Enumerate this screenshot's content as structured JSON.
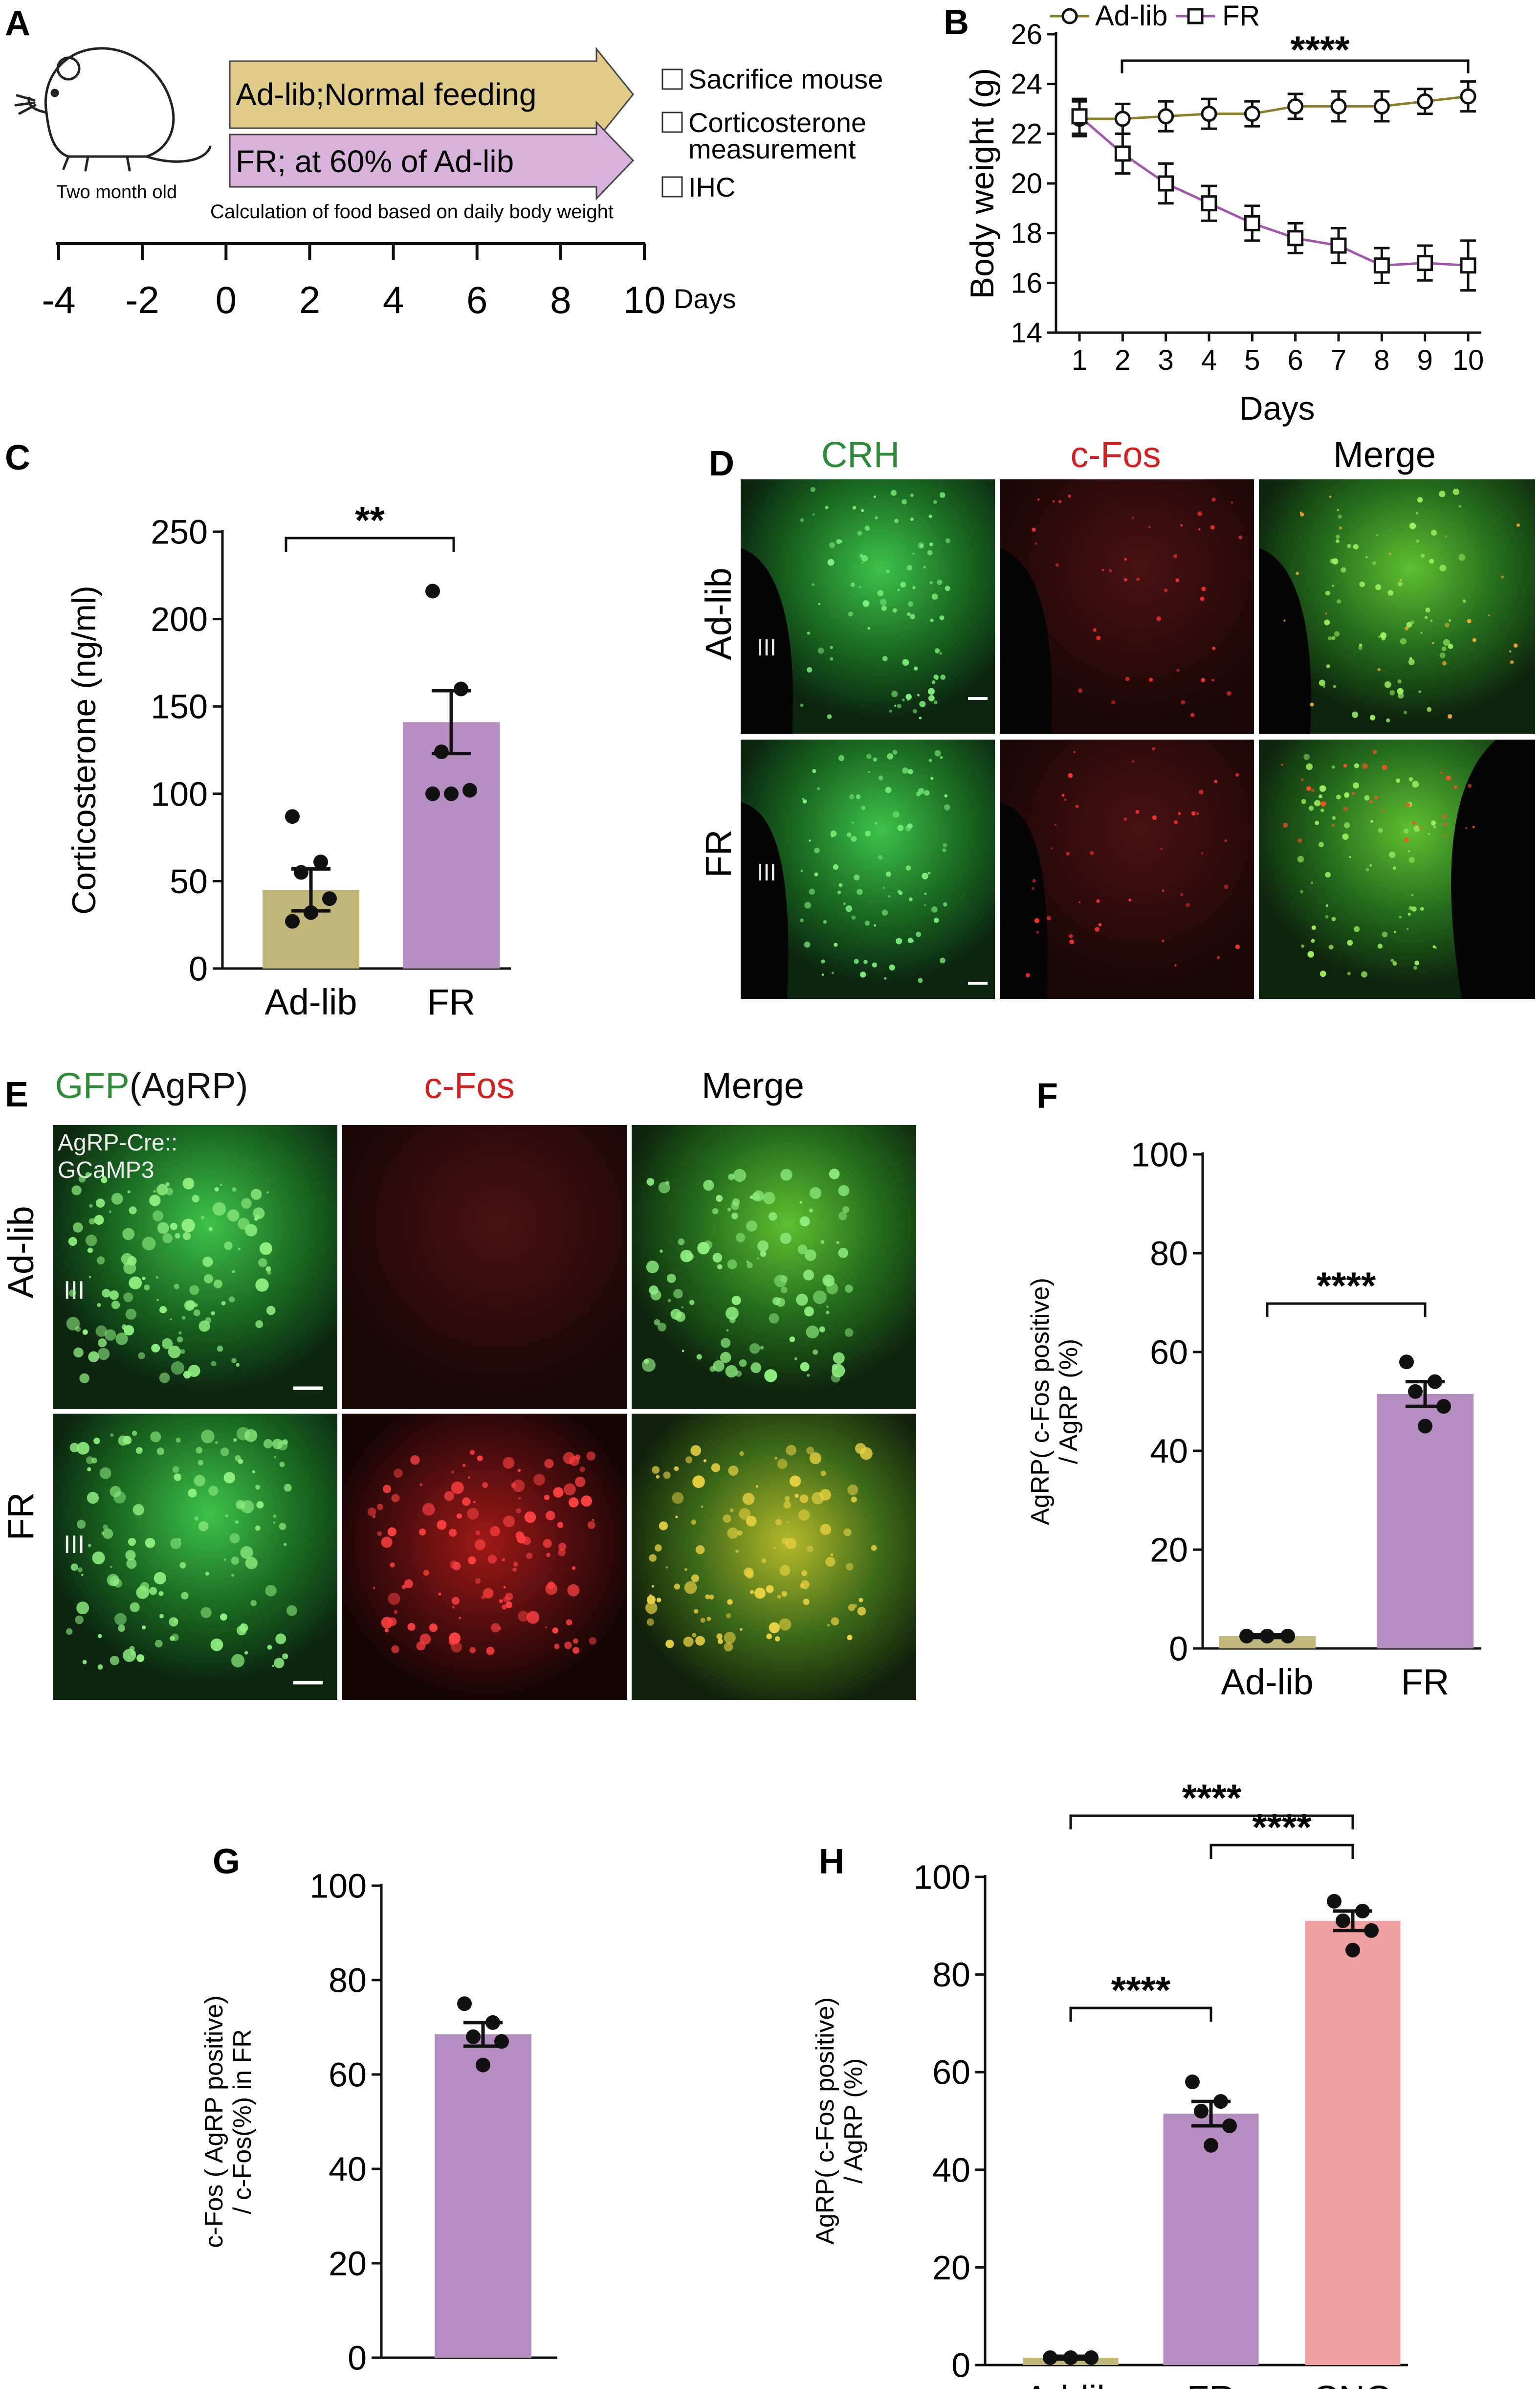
{
  "colors": {
    "adlib": "#c2b77a",
    "adlib_line": "#8a7f2a",
    "fr": "#b58dc0",
    "fr_line": "#9e5aa8",
    "cno": "#f0a0a0",
    "arrow_adlib": "#e0cc88",
    "arrow_fr": "#d9b2dc",
    "green": "#2e8b3a",
    "red": "#d42020",
    "micro_bg": "#080808"
  },
  "panels": {
    "A": {
      "letter": "A",
      "mouse_label": "Two month old",
      "arrow1": "Ad-lib;Normal feeding",
      "arrow2": "FR; at 60% of Ad-lib",
      "note": "Calculation of food based on daily body weight",
      "checklist": [
        "Sacrifice mouse",
        "Corticosterone",
        "measurement",
        "IHC"
      ],
      "timeline_ticks": [
        "-4",
        "-2",
        "0",
        "2",
        "4",
        "6",
        "8",
        "10"
      ],
      "timeline_unit": "Days"
    },
    "D": {
      "letter": "D",
      "columns": [
        "CRH",
        "c-Fos",
        "Merge"
      ],
      "rows": [
        "Ad-lib",
        "FR"
      ],
      "ventricle_label": "III"
    },
    "E": {
      "letter": "E",
      "col1_green": "GFP",
      "col1_rest": "(AgRP)",
      "columns_rest": [
        "c-Fos",
        "Merge"
      ],
      "rows": [
        "Ad-lib",
        "FR"
      ],
      "inset_line1": "AgRP-Cre::",
      "inset_line2": "GCaMP3",
      "ventricle_label": "III"
    }
  },
  "chart_data": [
    {
      "panel": "B",
      "type": "line",
      "xlabel": "Days",
      "ylabel": "Body weight (g)",
      "ylim": [
        14,
        26
      ],
      "yticks": [
        14,
        16,
        18,
        20,
        22,
        24,
        26
      ],
      "x": [
        1,
        2,
        3,
        4,
        5,
        6,
        7,
        8,
        9,
        10
      ],
      "series": [
        {
          "name": "Ad-lib",
          "values": [
            22.6,
            22.6,
            22.7,
            22.8,
            22.8,
            23.1,
            23.1,
            23.1,
            23.3,
            23.5
          ],
          "sem": [
            0.7,
            0.6,
            0.6,
            0.6,
            0.5,
            0.5,
            0.6,
            0.6,
            0.5,
            0.6
          ]
        },
        {
          "name": "FR",
          "values": [
            22.7,
            21.2,
            20.0,
            19.2,
            18.4,
            17.8,
            17.5,
            16.7,
            16.8,
            16.7
          ],
          "sem": [
            0.7,
            0.8,
            0.8,
            0.7,
            0.7,
            0.6,
            0.7,
            0.7,
            0.7,
            1.0
          ]
        }
      ],
      "significance": "****",
      "legend": "top"
    },
    {
      "panel": "C",
      "type": "bar",
      "categories": [
        "Ad-lib",
        "FR"
      ],
      "values": [
        45,
        141
      ],
      "sem": [
        12,
        18
      ],
      "points": [
        [
          87,
          61,
          55,
          40,
          32,
          27
        ],
        [
          216,
          160,
          124,
          102,
          100,
          100
        ]
      ],
      "ylabel": "Corticosterone (ng/ml)",
      "ylim": [
        0,
        250
      ],
      "yticks": [
        0,
        50,
        100,
        150,
        200,
        250
      ],
      "significance": [
        "**"
      ]
    },
    {
      "panel": "F",
      "type": "bar",
      "categories": [
        "Ad-lib",
        "FR"
      ],
      "values": [
        2.5,
        51.5
      ],
      "sem": [
        0.3,
        2.5
      ],
      "points": [
        [
          2.5,
          2.5,
          2.5
        ],
        [
          58,
          54,
          52,
          49,
          45
        ]
      ],
      "ylabel_line1": "AgRP( c-Fos positive)",
      "ylabel_line2": "/ AgRP (%)",
      "ylim": [
        0,
        100
      ],
      "yticks": [
        0,
        20,
        40,
        60,
        80,
        100
      ],
      "significance": [
        "****"
      ]
    },
    {
      "panel": "G",
      "type": "bar",
      "categories": [
        ""
      ],
      "values": [
        68.5
      ],
      "sem": [
        2.5
      ],
      "points": [
        [
          75,
          71,
          68,
          67,
          62
        ]
      ],
      "ylabel_line1": "c-Fos ( AgRP positive)",
      "ylabel_line2": "/ c-Fos(%) in FR",
      "ylim": [
        0,
        100
      ],
      "yticks": [
        0,
        20,
        40,
        60,
        80,
        100
      ],
      "significance": []
    },
    {
      "panel": "H",
      "type": "bar",
      "categories": [
        "Ad-lib",
        "FR",
        "CNO"
      ],
      "values": [
        1.5,
        51.5,
        91
      ],
      "sem": [
        0.3,
        2.5,
        2
      ],
      "points": [
        [
          1.5,
          1.5,
          1.5
        ],
        [
          58,
          54,
          52,
          49,
          45
        ],
        [
          95,
          93,
          91,
          89,
          85
        ]
      ],
      "ylabel_line1": "AgRP( c-Fos positive)",
      "ylabel_line2": "/ AgRP (%)",
      "ylim": [
        0,
        100
      ],
      "yticks": [
        0,
        20,
        40,
        60,
        80,
        100
      ],
      "significance": [
        "****",
        "****",
        "****"
      ]
    }
  ]
}
